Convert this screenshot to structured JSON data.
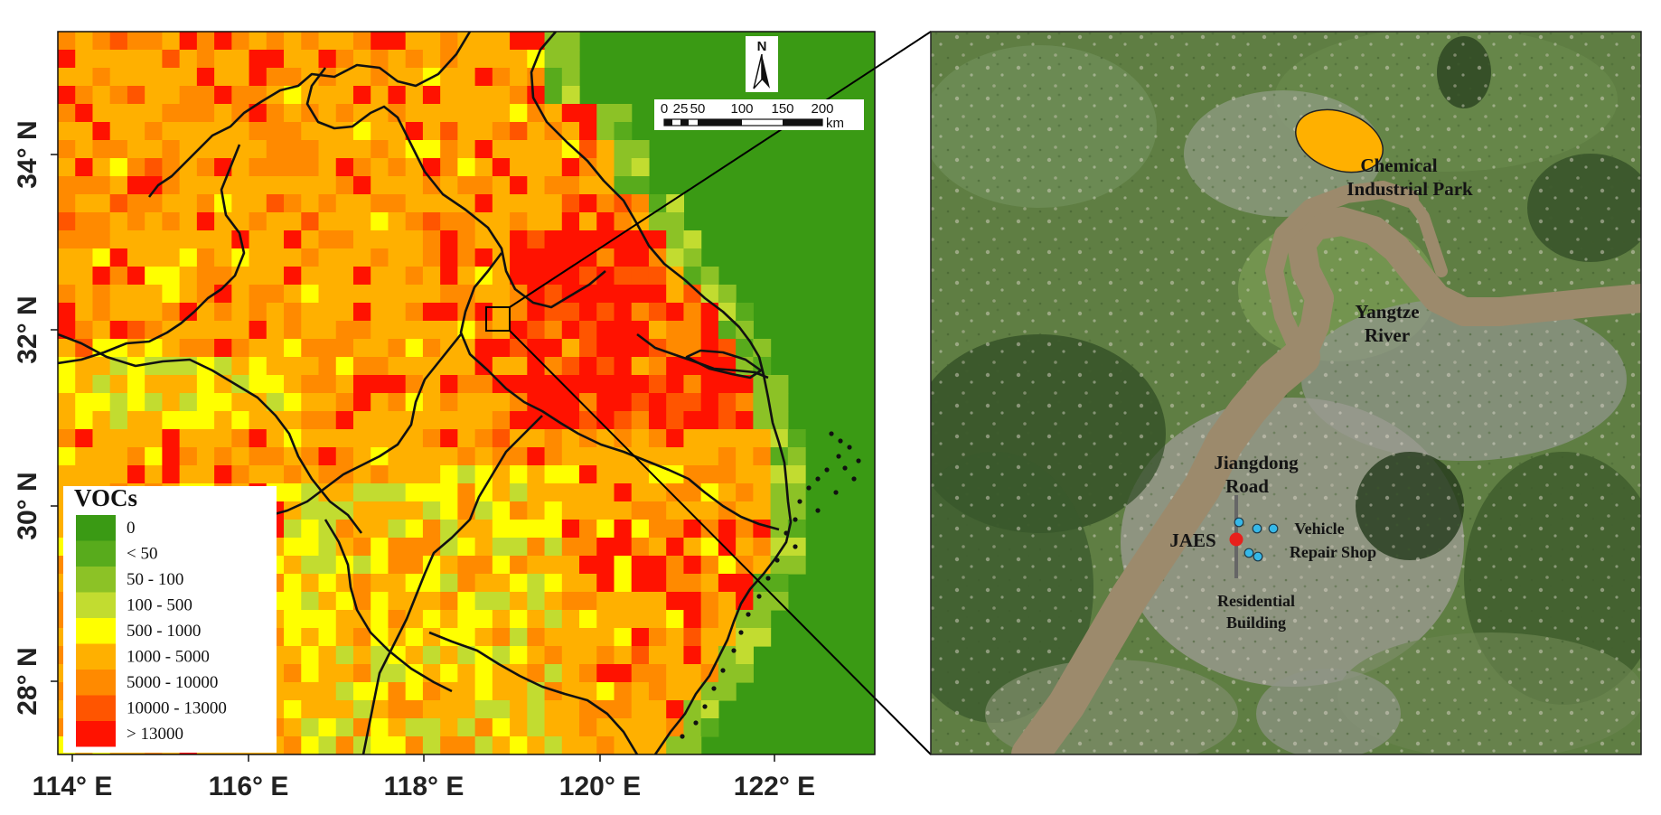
{
  "left_map": {
    "x_ticks": [
      "114° E",
      "116° E",
      "118° E",
      "120° E",
      "122° E"
    ],
    "y_ticks": [
      "34° N",
      "32° N",
      "30° N",
      "28° N"
    ],
    "scale_bar": {
      "labels": [
        "0",
        "25",
        "50",
        "100",
        "150",
        "200"
      ],
      "unit": "km"
    },
    "north_arrow": {
      "label": "N",
      "icon": "north-arrow-icon"
    },
    "legend": {
      "title": "VOCs",
      "items": [
        {
          "label": "0",
          "color": "#3a9a14"
        },
        {
          "label": "< 50",
          "color": "#58ab1c"
        },
        {
          "label": "50 - 100",
          "color": "#8cc226"
        },
        {
          "label": "100 - 500",
          "color": "#c2dc30"
        },
        {
          "label": "500 - 1000",
          "color": "#ffff00"
        },
        {
          "label": "1000 - 5000",
          "color": "#ffb000"
        },
        {
          "label": "5000 - 10000",
          "color": "#ff8a00"
        },
        {
          "label": "10000 - 13000",
          "color": "#ff5500"
        },
        {
          "label": "> 13000",
          "color": "#ff1200"
        }
      ]
    }
  },
  "right_map": {
    "labels": {
      "chemical_park_1": "Chemical",
      "chemical_park_2": "Industrial Park",
      "river_1": "Yangtze",
      "river_2": "River",
      "road_1": "Jiangdong",
      "road_2": "Road",
      "site": "JAES",
      "shop_1": "Vehicle",
      "shop_2": "Repair Shop",
      "building_1": "Residential",
      "building_2": "Building"
    },
    "colors": {
      "park": "#ffb000",
      "site": "#e8201c",
      "points": "#36b8e8",
      "river": "#9c8a6c"
    }
  }
}
